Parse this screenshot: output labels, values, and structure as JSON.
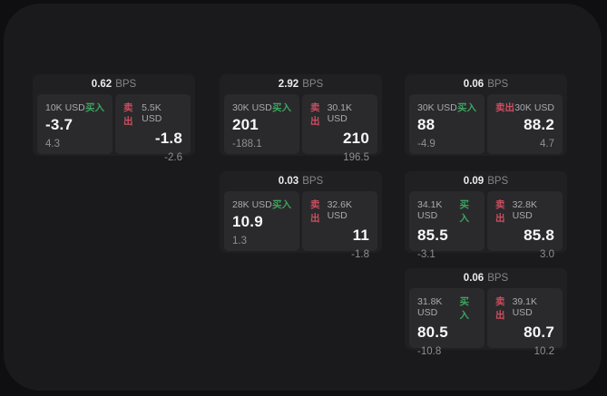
{
  "labels": {
    "bps_unit": "BPS",
    "buy": "买入",
    "sell": "卖出"
  },
  "colors": {
    "buy_accent": "#3da35e",
    "sell_accent": "#cb4e5e",
    "window_bg": "#1a1a1c",
    "card_bg": "#202023",
    "panel_bg": "#2a2a2d"
  },
  "cards": [
    {
      "bps": "0.62",
      "buy": {
        "amount": "10K USD",
        "value": "-3.7",
        "sub": "4.3"
      },
      "sell": {
        "amount": "5.5K USD",
        "value": "-1.8",
        "sub": "-2.6"
      }
    },
    {
      "bps": "2.92",
      "buy": {
        "amount": "30K USD",
        "value": "201",
        "sub": "-188.1"
      },
      "sell": {
        "amount": "30.1K USD",
        "value": "210",
        "sub": "196.5"
      }
    },
    {
      "bps": "0.06",
      "buy": {
        "amount": "30K USD",
        "value": "88",
        "sub": "-4.9"
      },
      "sell": {
        "amount": "30K USD",
        "value": "88.2",
        "sub": "4.7"
      }
    },
    {
      "bps": "0.03",
      "buy": {
        "amount": "28K USD",
        "value": "10.9",
        "sub": "1.3"
      },
      "sell": {
        "amount": "32.6K USD",
        "value": "11",
        "sub": "-1.8"
      }
    },
    {
      "bps": "0.09",
      "buy": {
        "amount": "34.1K USD",
        "value": "85.5",
        "sub": "-3.1"
      },
      "sell": {
        "amount": "32.8K USD",
        "value": "85.8",
        "sub": "3.0"
      }
    },
    {
      "bps": "0.06",
      "buy": {
        "amount": "31.8K USD",
        "value": "80.5",
        "sub": "-10.8"
      },
      "sell": {
        "amount": "39.1K USD",
        "value": "80.7",
        "sub": "10.2"
      }
    }
  ]
}
